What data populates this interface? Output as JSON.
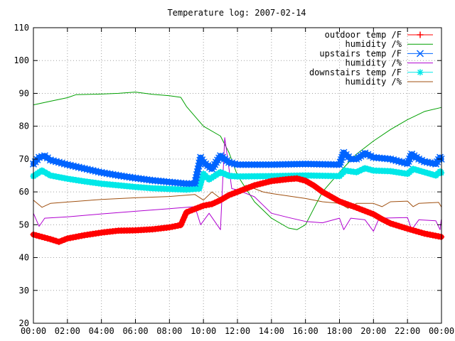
{
  "chart_data": {
    "type": "line",
    "title": "Temperature log: 2007-02-14",
    "xlabel": "",
    "ylabel": "",
    "xlim": [
      "00:00",
      "24:00"
    ],
    "ylim": [
      20,
      110
    ],
    "x_ticks": [
      "00:00",
      "02:00",
      "04:00",
      "06:00",
      "08:00",
      "10:00",
      "12:00",
      "14:00",
      "16:00",
      "18:00",
      "20:00",
      "22:00",
      "00:00"
    ],
    "y_ticks": [
      "20",
      "30",
      "40",
      "50",
      "60",
      "70",
      "80",
      "90",
      "100",
      "110"
    ],
    "grid": true,
    "legend_position": "top-right",
    "series": [
      {
        "name": "outdoor temp /F",
        "color": "#ff0000",
        "marker": "plus",
        "points": [
          [
            "00:00",
            47
          ],
          [
            "01:00",
            45.6
          ],
          [
            "01:30",
            44.8
          ],
          [
            "02:00",
            45.8
          ],
          [
            "03:00",
            46.8
          ],
          [
            "04:00",
            47.6
          ],
          [
            "05:00",
            48.2
          ],
          [
            "06:00",
            48.3
          ],
          [
            "07:00",
            48.6
          ],
          [
            "08:00",
            49.2
          ],
          [
            "08:40",
            49.9
          ],
          [
            "09:00",
            53.8
          ],
          [
            "09:30",
            54.8
          ],
          [
            "10:00",
            55.8
          ],
          [
            "10:30",
            56.3
          ],
          [
            "11:00",
            57.5
          ],
          [
            "11:30",
            59
          ],
          [
            "12:00",
            60
          ],
          [
            "13:00",
            62
          ],
          [
            "14:00",
            63.3
          ],
          [
            "15:00",
            63.9
          ],
          [
            "15:30",
            64.1
          ],
          [
            "16:00",
            63.4
          ],
          [
            "16:30",
            61.9
          ],
          [
            "17:00",
            60
          ],
          [
            "18:00",
            57.1
          ],
          [
            "19:00",
            55.2
          ],
          [
            "20:00",
            53.2
          ],
          [
            "20:30",
            51.7
          ],
          [
            "21:00",
            50.4
          ],
          [
            "22:00",
            48.8
          ],
          [
            "23:00",
            47.3
          ],
          [
            "23:59",
            46.3
          ]
        ]
      },
      {
        "name": "humidity /%",
        "color": "#00a000",
        "marker": "none",
        "points": [
          [
            "00:00",
            86.5
          ],
          [
            "01:00",
            87.6
          ],
          [
            "02:00",
            88.7
          ],
          [
            "02:30",
            89.6
          ],
          [
            "04:00",
            89.8
          ],
          [
            "05:00",
            90
          ],
          [
            "06:00",
            90.4
          ],
          [
            "07:00",
            89.7
          ],
          [
            "08:00",
            89.3
          ],
          [
            "08:40",
            88.8
          ],
          [
            "09:00",
            86
          ],
          [
            "10:00",
            80
          ],
          [
            "11:00",
            77
          ],
          [
            "11:30",
            72
          ],
          [
            "12:00",
            65
          ],
          [
            "12:30",
            61
          ],
          [
            "13:00",
            57
          ],
          [
            "14:00",
            52
          ],
          [
            "15:00",
            49
          ],
          [
            "15:30",
            48.5
          ],
          [
            "16:00",
            50
          ],
          [
            "16:30",
            55
          ],
          [
            "17:00",
            60
          ],
          [
            "18:00",
            66
          ],
          [
            "19:00",
            71.5
          ],
          [
            "20:00",
            75.5
          ],
          [
            "21:00",
            79
          ],
          [
            "22:00",
            82
          ],
          [
            "23:00",
            84.5
          ],
          [
            "23:59",
            85.7
          ]
        ]
      },
      {
        "name": "upstairs temp /F",
        "color": "#0064ff",
        "marker": "x",
        "points": [
          [
            "00:00",
            68.5
          ],
          [
            "00:20",
            70.5
          ],
          [
            "00:40",
            71
          ],
          [
            "01:00",
            69.7
          ],
          [
            "02:00",
            68.3
          ],
          [
            "03:00",
            67.1
          ],
          [
            "04:00",
            65.9
          ],
          [
            "05:00",
            65
          ],
          [
            "06:00",
            64.2
          ],
          [
            "07:00",
            63.5
          ],
          [
            "08:00",
            63
          ],
          [
            "09:00",
            62.5
          ],
          [
            "09:30",
            62.6
          ],
          [
            "09:50",
            70.5
          ],
          [
            "10:00",
            69
          ],
          [
            "10:30",
            67
          ],
          [
            "11:00",
            71
          ],
          [
            "11:30",
            69
          ],
          [
            "12:00",
            68.3
          ],
          [
            "14:00",
            68.3
          ],
          [
            "16:00",
            68.5
          ],
          [
            "18:00",
            68.3
          ],
          [
            "18:15",
            72
          ],
          [
            "18:40",
            70
          ],
          [
            "19:00",
            70
          ],
          [
            "19:30",
            71.8
          ],
          [
            "20:00",
            70.5
          ],
          [
            "21:00",
            70
          ],
          [
            "22:00",
            68.6
          ],
          [
            "22:15",
            71.5
          ],
          [
            "22:40",
            70
          ],
          [
            "23:00",
            69.2
          ],
          [
            "23:40",
            68.5
          ],
          [
            "23:55",
            70.5
          ],
          [
            "23:59",
            70
          ]
        ]
      },
      {
        "name": "humidity /%",
        "color": "#b000d0",
        "marker": "none",
        "points": [
          [
            "00:00",
            53.5
          ],
          [
            "00:20",
            49.5
          ],
          [
            "00:40",
            52
          ],
          [
            "02:00",
            52.4
          ],
          [
            "04:00",
            53.3
          ],
          [
            "06:00",
            54.1
          ],
          [
            "08:00",
            54.9
          ],
          [
            "09:30",
            55.5
          ],
          [
            "09:50",
            50
          ],
          [
            "10:20",
            53.5
          ],
          [
            "11:00",
            48.5
          ],
          [
            "11:15",
            76.5
          ],
          [
            "11:40",
            61
          ],
          [
            "12:00",
            60.6
          ],
          [
            "13:00",
            58.5
          ],
          [
            "14:00",
            53.5
          ],
          [
            "15:00",
            52.2
          ],
          [
            "16:00",
            51
          ],
          [
            "17:00",
            50.6
          ],
          [
            "18:00",
            52
          ],
          [
            "18:15",
            48.5
          ],
          [
            "18:40",
            52
          ],
          [
            "19:30",
            51.5
          ],
          [
            "20:00",
            48
          ],
          [
            "20:20",
            52
          ],
          [
            "22:00",
            52.2
          ],
          [
            "22:15",
            48.5
          ],
          [
            "22:40",
            51.5
          ],
          [
            "23:40",
            51.2
          ],
          [
            "23:55",
            48.5
          ],
          [
            "23:59",
            51.5
          ]
        ]
      },
      {
        "name": "downstairs temp /F",
        "color": "#00e8e8",
        "marker": "star",
        "points": [
          [
            "00:00",
            64.8
          ],
          [
            "00:30",
            66.5
          ],
          [
            "01:00",
            65
          ],
          [
            "02:00",
            64
          ],
          [
            "03:00",
            63.2
          ],
          [
            "04:00",
            62.5
          ],
          [
            "05:00",
            62
          ],
          [
            "06:00",
            61.5
          ],
          [
            "07:00",
            61.1
          ],
          [
            "08:00",
            60.9
          ],
          [
            "09:00",
            60.7
          ],
          [
            "09:45",
            61
          ],
          [
            "10:00",
            65.5
          ],
          [
            "10:20",
            63.8
          ],
          [
            "11:00",
            66
          ],
          [
            "11:30",
            64.9
          ],
          [
            "12:00",
            64.7
          ],
          [
            "14:00",
            64.8
          ],
          [
            "16:00",
            65
          ],
          [
            "18:00",
            64.8
          ],
          [
            "18:20",
            66.5
          ],
          [
            "19:00",
            66
          ],
          [
            "19:30",
            67.2
          ],
          [
            "20:00",
            66.5
          ],
          [
            "21:00",
            66.3
          ],
          [
            "22:00",
            65.5
          ],
          [
            "22:20",
            67
          ],
          [
            "23:00",
            66
          ],
          [
            "23:40",
            65
          ],
          [
            "23:55",
            66.2
          ],
          [
            "23:59",
            65.8
          ]
        ]
      },
      {
        "name": "humidity /%",
        "color": "#a05010",
        "marker": "none",
        "points": [
          [
            "00:00",
            57.5
          ],
          [
            "00:30",
            55.3
          ],
          [
            "01:00",
            56.5
          ],
          [
            "02:00",
            56.9
          ],
          [
            "04:00",
            57.7
          ],
          [
            "06:00",
            58.2
          ],
          [
            "08:00",
            58.6
          ],
          [
            "09:30",
            59.2
          ],
          [
            "10:00",
            57.5
          ],
          [
            "10:30",
            60
          ],
          [
            "11:00",
            58
          ],
          [
            "11:30",
            59
          ],
          [
            "12:00",
            60
          ],
          [
            "12:30",
            62
          ],
          [
            "13:30",
            60
          ],
          [
            "14:00",
            59.5
          ],
          [
            "16:00",
            58
          ],
          [
            "17:00",
            57
          ],
          [
            "18:00",
            56.5
          ],
          [
            "18:30",
            55
          ],
          [
            "19:00",
            56.5
          ],
          [
            "20:00",
            56.5
          ],
          [
            "20:30",
            55.5
          ],
          [
            "21:00",
            57
          ],
          [
            "22:00",
            57.2
          ],
          [
            "22:20",
            55.5
          ],
          [
            "22:40",
            56.5
          ],
          [
            "23:50",
            56.8
          ],
          [
            "23:59",
            55.5
          ]
        ]
      }
    ]
  }
}
